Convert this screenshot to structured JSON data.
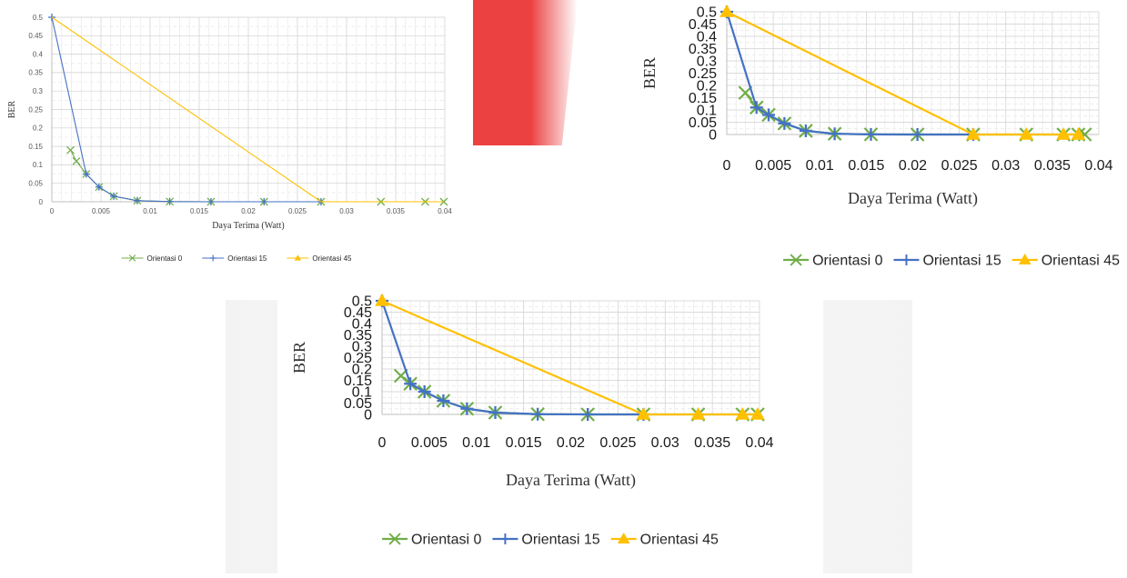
{
  "chart_data": [
    {
      "type": "line",
      "title": "",
      "xlabel": "Daya Terima (Watt)",
      "ylabel": "BER",
      "xlim": [
        0,
        0.04
      ],
      "ylim": [
        0,
        0.5
      ],
      "x_ticks": [
        "0",
        "0.005",
        "0.01",
        "0.015",
        "0.02",
        "0.025",
        "0.03",
        "0.035",
        "0.04"
      ],
      "y_ticks": [
        "0",
        "0.05",
        "0.1",
        "0.15",
        "0.2",
        "0.25",
        "0.3",
        "0.35",
        "0.4",
        "0.45",
        "0.5"
      ],
      "grid": true,
      "legend_position": "bottom",
      "series": [
        {
          "name": "Orientasi 0",
          "color": "#70ad47",
          "marker": "x",
          "points": [
            [
              0.0019,
              0.14
            ],
            [
              0.0025,
              0.11
            ],
            [
              0.0035,
              0.075
            ],
            [
              0.0048,
              0.04
            ],
            [
              0.0063,
              0.015
            ],
            [
              0.0087,
              0.003
            ],
            [
              0.012,
              0.0005
            ],
            [
              0.0162,
              0
            ],
            [
              0.0216,
              0
            ],
            [
              0.0274,
              0
            ],
            [
              0.0335,
              0
            ],
            [
              0.038,
              0
            ],
            [
              0.0399,
              0
            ]
          ]
        },
        {
          "name": "Orientasi 15",
          "color": "#4472c4",
          "marker": "plus",
          "points": [
            [
              0.0,
              0.5
            ],
            [
              0.0035,
              0.075
            ],
            [
              0.0048,
              0.04
            ],
            [
              0.0063,
              0.015
            ],
            [
              0.0087,
              0.003
            ],
            [
              0.012,
              0.0005
            ],
            [
              0.0162,
              0
            ],
            [
              0.0216,
              0
            ],
            [
              0.0274,
              0
            ]
          ]
        },
        {
          "name": "Orientasi 45",
          "color": "#ffc000",
          "marker": "none",
          "points": [
            [
              0.0,
              0.5
            ],
            [
              0.0274,
              0
            ],
            [
              0.0335,
              0
            ],
            [
              0.038,
              0
            ],
            [
              0.0399,
              0
            ]
          ]
        }
      ]
    },
    {
      "type": "line",
      "title": "",
      "xlabel": "Daya Terima (Watt)",
      "ylabel": "BER",
      "xlim": [
        0,
        0.04
      ],
      "ylim": [
        0,
        0.5
      ],
      "x_ticks": [
        "0",
        "0.005",
        "0.01",
        "0.015",
        "0.02",
        "0.025",
        "0.03",
        "0.035",
        "0.04"
      ],
      "y_ticks": [
        "0",
        "0.05",
        "0.1",
        "0.15",
        "0.2",
        "0.25",
        "0.3",
        "0.35",
        "0.4",
        "0.45",
        "0.5"
      ],
      "grid": true,
      "legend_position": "bottom",
      "series": [
        {
          "name": "Orientasi 0",
          "color": "#70ad47",
          "marker": "x",
          "points": [
            [
              0.002,
              0.17
            ],
            [
              0.0032,
              0.11
            ],
            [
              0.0045,
              0.08
            ],
            [
              0.0062,
              0.045
            ],
            [
              0.0085,
              0.015
            ],
            [
              0.0116,
              0.003
            ],
            [
              0.0155,
              0.0005
            ],
            [
              0.0205,
              0
            ],
            [
              0.0265,
              0
            ],
            [
              0.0322,
              0
            ],
            [
              0.0362,
              0
            ],
            [
              0.0378,
              0
            ],
            [
              0.0385,
              0
            ]
          ]
        },
        {
          "name": "Orientasi 15",
          "color": "#4472c4",
          "marker": "plus",
          "points": [
            [
              0.0,
              0.5
            ],
            [
              0.0032,
              0.11
            ],
            [
              0.0045,
              0.08
            ],
            [
              0.0062,
              0.045
            ],
            [
              0.0085,
              0.015
            ],
            [
              0.0116,
              0.003
            ],
            [
              0.0155,
              0.0005
            ],
            [
              0.0205,
              0
            ],
            [
              0.0265,
              0
            ]
          ]
        },
        {
          "name": "Orientasi 45",
          "color": "#ffc000",
          "marker": "triangle",
          "points": [
            [
              0.0,
              0.5
            ],
            [
              0.0265,
              0
            ],
            [
              0.0322,
              0
            ],
            [
              0.0362,
              0
            ],
            [
              0.0378,
              0
            ]
          ]
        }
      ]
    },
    {
      "type": "line",
      "title": "",
      "xlabel": "Daya Terima (Watt)",
      "ylabel": "BER",
      "xlim": [
        0,
        0.04
      ],
      "ylim": [
        0,
        0.5
      ],
      "x_ticks": [
        "0",
        "0.005",
        "0.01",
        "0.015",
        "0.02",
        "0.025",
        "0.03",
        "0.035",
        "0.04"
      ],
      "y_ticks": [
        "0",
        "0.05",
        "0.1",
        "0.15",
        "0.2",
        "0.25",
        "0.3",
        "0.35",
        "0.4",
        "0.45",
        "0.5"
      ],
      "grid": true,
      "legend_position": "bottom",
      "series": [
        {
          "name": "Orientasi 0",
          "color": "#70ad47",
          "marker": "x",
          "points": [
            [
              0.002,
              0.17
            ],
            [
              0.003,
              0.135
            ],
            [
              0.0045,
              0.1
            ],
            [
              0.0065,
              0.06
            ],
            [
              0.009,
              0.025
            ],
            [
              0.012,
              0.008
            ],
            [
              0.0165,
              0.001
            ],
            [
              0.0218,
              0
            ],
            [
              0.0277,
              0
            ],
            [
              0.0335,
              0
            ],
            [
              0.0382,
              0
            ],
            [
              0.0398,
              0
            ]
          ]
        },
        {
          "name": "Orientasi 15",
          "color": "#4472c4",
          "marker": "plus",
          "points": [
            [
              0.0,
              0.5
            ],
            [
              0.003,
              0.135
            ],
            [
              0.0045,
              0.1
            ],
            [
              0.0065,
              0.06
            ],
            [
              0.009,
              0.025
            ],
            [
              0.012,
              0.008
            ],
            [
              0.0165,
              0.001
            ],
            [
              0.0218,
              0
            ],
            [
              0.0277,
              0
            ]
          ]
        },
        {
          "name": "Orientasi 45",
          "color": "#ffc000",
          "marker": "triangle",
          "points": [
            [
              0.0,
              0.5
            ],
            [
              0.0277,
              0
            ],
            [
              0.0335,
              0
            ],
            [
              0.0382,
              0
            ],
            [
              0.0398,
              0
            ]
          ]
        }
      ]
    }
  ]
}
